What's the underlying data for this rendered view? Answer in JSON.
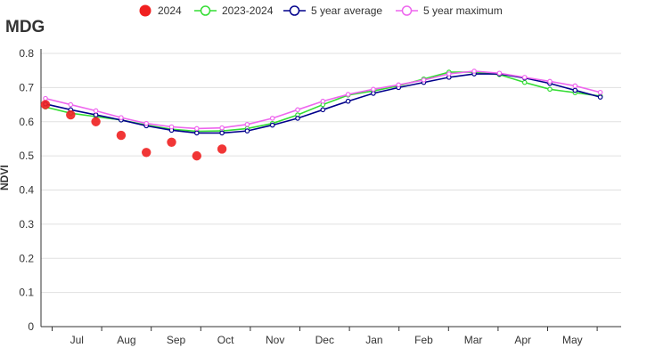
{
  "chart_title": "MDG",
  "colors": {
    "s2024": "#f02020",
    "s2023_2024": "#33dd33",
    "s5y_avg": "#00008b",
    "s5y_max": "#ee66ee"
  },
  "chart_data": {
    "type": "line",
    "title": "MDG",
    "xlabel": "",
    "ylabel": "NDVI",
    "ylim": [
      0,
      0.8
    ],
    "yticks": [
      "0",
      "0.1",
      "0.2",
      "0.3",
      "0.4",
      "0.5",
      "0.6",
      "0.7",
      "0.8"
    ],
    "month_labels": [
      "Jul",
      "Aug",
      "Sep",
      "Oct",
      "Nov",
      "Dec",
      "Jan",
      "Feb",
      "Mar",
      "Apr",
      "May"
    ],
    "grid": "horizontal",
    "legend_position": "top",
    "x_dekads": [
      0,
      1,
      2,
      3,
      4,
      5,
      6,
      7,
      8,
      9,
      10,
      11,
      12,
      13,
      14,
      15,
      16,
      17,
      18,
      19,
      20,
      21,
      22
    ],
    "series": [
      {
        "name": "2024",
        "style": "dot",
        "color": "#f02020",
        "values": [
          0.65,
          0.62,
          0.6,
          0.56,
          0.51,
          0.54,
          0.5,
          0.52
        ]
      },
      {
        "name": "2023-2024",
        "style": "line",
        "color": "#33dd33",
        "values": [
          0.643,
          0.625,
          0.615,
          0.605,
          0.59,
          0.578,
          0.572,
          0.573,
          0.58,
          0.595,
          0.62,
          0.65,
          0.678,
          0.69,
          0.705,
          0.725,
          0.745,
          0.745,
          0.738,
          0.715,
          0.695,
          0.685,
          0.675
        ]
      },
      {
        "name": "5 year average",
        "style": "line",
        "color": "#00008b",
        "values": [
          0.652,
          0.635,
          0.62,
          0.605,
          0.588,
          0.575,
          0.567,
          0.567,
          0.573,
          0.59,
          0.61,
          0.635,
          0.66,
          0.683,
          0.7,
          0.715,
          0.73,
          0.74,
          0.74,
          0.728,
          0.712,
          0.692,
          0.672
        ]
      },
      {
        "name": "5 year maximum",
        "style": "line",
        "color": "#ee66ee",
        "values": [
          0.668,
          0.65,
          0.632,
          0.612,
          0.595,
          0.585,
          0.58,
          0.582,
          0.592,
          0.61,
          0.635,
          0.66,
          0.68,
          0.695,
          0.708,
          0.722,
          0.74,
          0.748,
          0.742,
          0.73,
          0.718,
          0.705,
          0.686
        ]
      }
    ]
  }
}
